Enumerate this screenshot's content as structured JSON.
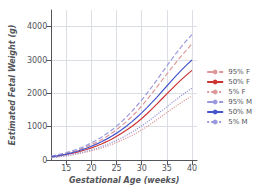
{
  "chart_data": {
    "type": "line",
    "xlabel": "Gestational Age (weeks)",
    "ylabel": "Estimated Fetal Weight (g)",
    "x": [
      12,
      13,
      14,
      15,
      16,
      17,
      18,
      19,
      20,
      21,
      22,
      23,
      24,
      25,
      26,
      27,
      28,
      29,
      30,
      31,
      32,
      33,
      34,
      35,
      36,
      37,
      38,
      39,
      40
    ],
    "series": [
      {
        "name": "95% F",
        "color": "#dd9999",
        "line_style": "dashed",
        "values": [
          110,
          135,
          165,
          200,
          240,
          285,
          335,
          395,
          460,
          530,
          610,
          700,
          800,
          910,
          1030,
          1160,
          1300,
          1450,
          1620,
          1800,
          1990,
          2185,
          2385,
          2580,
          2770,
          2960,
          3140,
          3310,
          3490
        ]
      },
      {
        "name": "50% F",
        "color": "#cc3333",
        "line_style": "solid",
        "values": [
          90,
          110,
          135,
          165,
          195,
          230,
          270,
          315,
          365,
          420,
          480,
          550,
          625,
          710,
          800,
          900,
          1005,
          1120,
          1245,
          1380,
          1525,
          1675,
          1830,
          1985,
          2135,
          2285,
          2425,
          2560,
          2690
        ]
      },
      {
        "name": "5% F",
        "color": "#dd9999",
        "line_style": "dotted",
        "values": [
          70,
          85,
          105,
          125,
          150,
          175,
          205,
          238,
          275,
          315,
          360,
          410,
          465,
          525,
          590,
          660,
          735,
          815,
          905,
          1000,
          1100,
          1205,
          1315,
          1425,
          1530,
          1635,
          1735,
          1830,
          1920
        ]
      },
      {
        "name": "95% M",
        "color": "#9999dd",
        "line_style": "dashed",
        "values": [
          120,
          148,
          182,
          220,
          265,
          315,
          372,
          438,
          512,
          595,
          685,
          785,
          895,
          1015,
          1150,
          1295,
          1450,
          1620,
          1800,
          1990,
          2190,
          2395,
          2610,
          2820,
          3030,
          3230,
          3420,
          3600,
          3760
        ]
      },
      {
        "name": "50% M",
        "color": "#4455cc",
        "line_style": "solid",
        "values": [
          95,
          118,
          145,
          178,
          215,
          256,
          302,
          354,
          412,
          477,
          548,
          626,
          712,
          806,
          910,
          1022,
          1143,
          1274,
          1415,
          1565,
          1720,
          1880,
          2050,
          2220,
          2390,
          2555,
          2710,
          2860,
          3000
        ]
      },
      {
        "name": "5% M",
        "color": "#9999dd",
        "line_style": "dotted",
        "values": [
          72,
          89,
          110,
          133,
          160,
          190,
          224,
          262,
          305,
          352,
          404,
          461,
          523,
          591,
          665,
          745,
          831,
          924,
          1024,
          1130,
          1240,
          1356,
          1475,
          1595,
          1715,
          1832,
          1945,
          2052,
          2155
        ]
      }
    ],
    "xlim": [
      12,
      41
    ],
    "ylim": [
      0,
      4500
    ],
    "xticks": [
      15,
      20,
      25,
      30,
      35,
      40
    ],
    "yticks": [
      0,
      1000,
      2000,
      3000,
      4000
    ],
    "grid": true,
    "legend": "right"
  }
}
